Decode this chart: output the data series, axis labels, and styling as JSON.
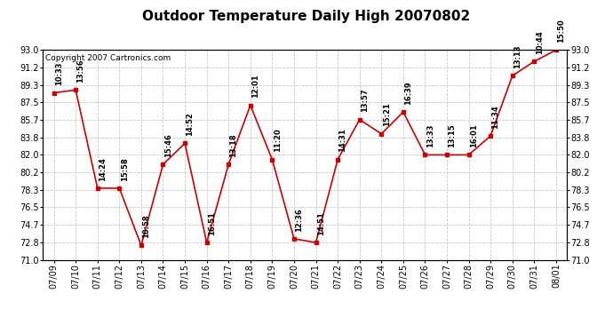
{
  "title": "Outdoor Temperature Daily High 20070802",
  "copyright": "Copyright 2007 Cartronics.com",
  "dates": [
    "07/09",
    "07/10",
    "07/11",
    "07/12",
    "07/13",
    "07/14",
    "07/15",
    "07/16",
    "07/17",
    "07/18",
    "07/19",
    "07/20",
    "07/21",
    "07/22",
    "07/23",
    "07/24",
    "07/25",
    "07/26",
    "07/27",
    "07/28",
    "07/29",
    "07/30",
    "07/31",
    "08/01"
  ],
  "temps": [
    88.5,
    88.8,
    78.5,
    78.5,
    72.5,
    81.0,
    83.2,
    72.8,
    81.0,
    87.2,
    81.5,
    73.2,
    72.8,
    81.5,
    85.7,
    84.2,
    86.5,
    82.0,
    82.0,
    82.0,
    84.0,
    90.3,
    91.8,
    93.0
  ],
  "time_labels": [
    "10:33",
    "13:56",
    "14:24",
    "15:58",
    "10:58",
    "15:46",
    "14:52",
    "16:51",
    "13:18",
    "12:01",
    "11:20",
    "12:36",
    "14:51",
    "14:31",
    "13:57",
    "15:21",
    "16:39",
    "13:33",
    "13:15",
    "16:01",
    "11:34",
    "13:13",
    "10:44",
    "15:50"
  ],
  "ylim": [
    71.0,
    93.0
  ],
  "yticks": [
    71.0,
    72.8,
    74.7,
    76.5,
    78.3,
    80.2,
    82.0,
    83.8,
    85.7,
    87.5,
    89.3,
    91.2,
    93.0
  ],
  "line_color": "#cc0000",
  "marker_color": "#cc0000",
  "background_color": "#ffffff",
  "grid_color": "#c8c8c8",
  "title_fontsize": 11,
  "annotation_fontsize": 6.0,
  "tick_fontsize": 7,
  "copyright_fontsize": 6.5
}
